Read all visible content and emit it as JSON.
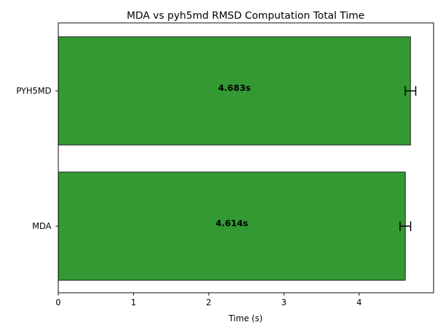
{
  "chart_data": {
    "type": "bar",
    "orientation": "horizontal",
    "title": "MDA vs pyh5md RMSD Computation Total Time",
    "xlabel": "Time (s)",
    "ylabel": "",
    "categories": [
      "MDA",
      "PYH5MD"
    ],
    "values": [
      4.614,
      4.683
    ],
    "errors": [
      0.07,
      0.07
    ],
    "data_labels": [
      "4.614s",
      "4.683s"
    ],
    "xlim": [
      0,
      4.99
    ],
    "xticks": [
      0,
      1,
      2,
      3,
      4
    ],
    "grid": false,
    "legend": "none",
    "bar_color": "#339933"
  }
}
